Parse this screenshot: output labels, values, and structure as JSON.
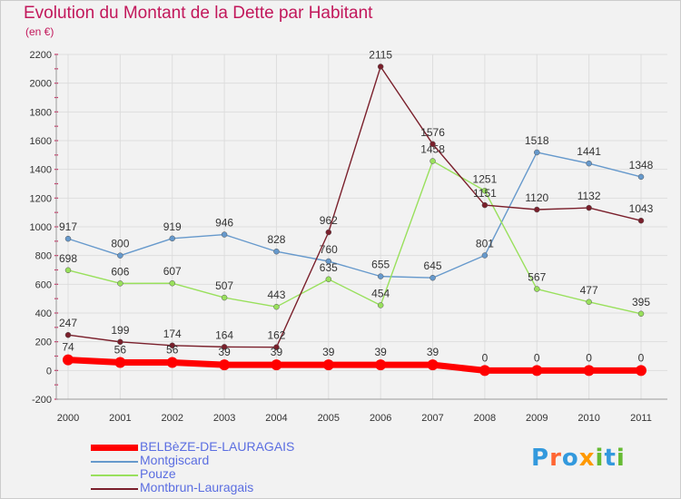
{
  "chart_data": {
    "type": "line",
    "title": "Evolution du Montant de la Dette par Habitant",
    "subtitle": "(en €)",
    "x": [
      "2000",
      "2001",
      "2002",
      "2003",
      "2004",
      "2005",
      "2006",
      "2007",
      "2008",
      "2009",
      "2010",
      "2011"
    ],
    "ylim": [
      -200,
      2200
    ],
    "yticks": [
      "-200",
      "0",
      "200",
      "400",
      "600",
      "800",
      "1000",
      "1200",
      "1400",
      "1600",
      "1800",
      "2000",
      "2200"
    ],
    "grid": true,
    "legend_position": "bottom-left",
    "series": [
      {
        "name": "BELBèZE-DE-LAURAGAIS",
        "color": "#ff0000",
        "values": [
          74,
          56,
          56,
          39,
          39,
          39,
          39,
          39,
          0,
          0,
          0,
          0
        ],
        "labels": [
          "74",
          "56",
          "56",
          "39",
          "39",
          "39",
          "39",
          "39",
          "0",
          "0",
          "0",
          "0"
        ]
      },
      {
        "name": "Montgiscard",
        "color": "#6699cc",
        "values": [
          917,
          800,
          919,
          946,
          828,
          760,
          655,
          645,
          801,
          1518,
          1441,
          1348
        ],
        "labels": [
          "917",
          "800",
          "919",
          "946",
          "828",
          "760",
          "655",
          "645",
          "801",
          "1518",
          "1441",
          "1348"
        ]
      },
      {
        "name": "Pouze",
        "color": "#99e05c",
        "values": [
          698,
          606,
          607,
          507,
          443,
          635,
          454,
          1458,
          1251,
          567,
          477,
          395
        ],
        "labels": [
          "698",
          "606",
          "607",
          "507",
          "443",
          "635",
          "454",
          "1458",
          "1251",
          "567",
          "477",
          "395"
        ]
      },
      {
        "name": "Montbrun-Lauragais",
        "color": "#7a1f2b",
        "values": [
          247,
          199,
          174,
          164,
          162,
          962,
          2115,
          1576,
          1151,
          1120,
          1132,
          1043
        ],
        "labels": [
          "247",
          "199",
          "174",
          "164",
          "162",
          "962",
          "2115",
          "1576",
          "1151",
          "1120",
          "1132",
          "1043"
        ]
      }
    ]
  },
  "logo": {
    "letters": [
      "P",
      "r",
      "o",
      "x",
      "i",
      "t",
      "i"
    ],
    "colors": [
      "#3399dd",
      "#ff6633",
      "#3399dd",
      "#ff9900",
      "#66bb33",
      "#3399dd",
      "#66bb33"
    ]
  }
}
